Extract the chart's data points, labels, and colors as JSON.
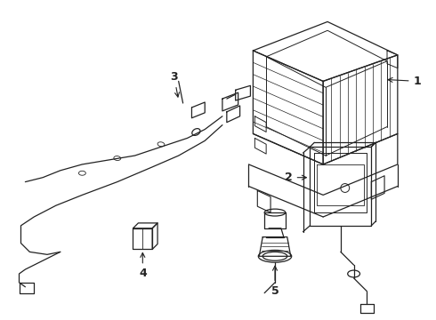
{
  "background_color": "#ffffff",
  "line_color": "#222222",
  "figsize": [
    4.9,
    3.6
  ],
  "dpi": 100
}
